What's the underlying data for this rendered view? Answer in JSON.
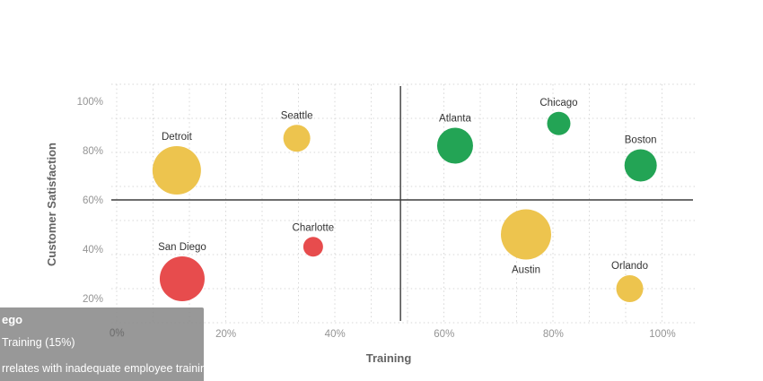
{
  "chart": {
    "xlabel": "Training",
    "ylabel": "Customer Satisfaction",
    "x_ticks": [
      "0%",
      "20%",
      "40%",
      "60%",
      "80%",
      "100%"
    ],
    "y_ticks": [
      "20%",
      "40%",
      "60%",
      "80%",
      "100%"
    ]
  },
  "chart_data": {
    "type": "scatter",
    "subtype": "bubble",
    "title": "",
    "xlabel": "Training",
    "ylabel": "Customer Satisfaction",
    "xlim": [
      0,
      100
    ],
    "ylim": [
      20,
      100
    ],
    "x_tick_values": [
      0,
      20,
      40,
      60,
      80,
      100
    ],
    "y_tick_values": [
      20,
      40,
      60,
      80,
      100
    ],
    "grid": "dotted",
    "legend_position": "none",
    "quadrant_lines": {
      "x": 52,
      "y": 60
    },
    "points": [
      {
        "name": "Detroit",
        "training": 11,
        "satisfaction": 72,
        "radius_px": 27,
        "group": "yellow",
        "label_position": "above"
      },
      {
        "name": "Seattle",
        "training": 33,
        "satisfaction": 85,
        "radius_px": 15,
        "group": "yellow",
        "label_position": "above"
      },
      {
        "name": "San Diego",
        "training": 12,
        "satisfaction": 28,
        "radius_px": 25,
        "group": "red",
        "label_position": "above"
      },
      {
        "name": "Charlotte",
        "training": 36,
        "satisfaction": 41,
        "radius_px": 11,
        "group": "red",
        "label_position": "above"
      },
      {
        "name": "Atlanta",
        "training": 62,
        "satisfaction": 82,
        "radius_px": 20,
        "group": "green",
        "label_position": "above"
      },
      {
        "name": "Chicago",
        "training": 81,
        "satisfaction": 91,
        "radius_px": 13,
        "group": "green",
        "label_position": "above"
      },
      {
        "name": "Boston",
        "training": 96,
        "satisfaction": 74,
        "radius_px": 18,
        "group": "green",
        "label_position": "above"
      },
      {
        "name": "Austin",
        "training": 75,
        "satisfaction": 46,
        "radius_px": 28,
        "group": "yellow",
        "label_position": "below"
      },
      {
        "name": "Orlando",
        "training": 94,
        "satisfaction": 24,
        "radius_px": 15,
        "group": "yellow",
        "label_position": "above"
      }
    ],
    "colors": {
      "yellow": "#EDC44E",
      "green": "#23A455",
      "red": "#E74C4D"
    }
  },
  "style_colors": {
    "grid": "#d7d7d7",
    "tick_label": "#949494",
    "axis_title": "#636363",
    "point_label": "#333333",
    "quadrant_line": "#3d3d3d",
    "tooltip_bg": "#8a8a8a",
    "tooltip_text": "#ffffff"
  },
  "tooltip": {
    "title": "ego",
    "measure": "Training (15%)",
    "note": "rrelates with inadequate employee training"
  }
}
